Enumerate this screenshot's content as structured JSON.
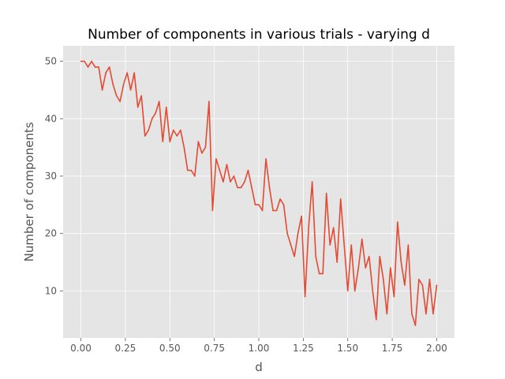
{
  "chart_data": {
    "type": "line",
    "title": "Number of components in various trials - varying d",
    "xlabel": "d",
    "ylabel": "Number of components",
    "xlim": [
      -0.1,
      2.1
    ],
    "ylim": [
      1.8,
      52.7
    ],
    "grid": true,
    "xticks": [
      0.0,
      0.25,
      0.5,
      0.75,
      1.0,
      1.25,
      1.5,
      1.75,
      2.0
    ],
    "xtick_labels": [
      "0.00",
      "0.25",
      "0.50",
      "0.75",
      "1.00",
      "1.25",
      "1.50",
      "1.75",
      "2.00"
    ],
    "yticks": [
      10,
      20,
      30,
      40,
      50
    ],
    "ytick_labels": [
      "10",
      "20",
      "30",
      "40",
      "50"
    ],
    "colors": {
      "line": "#e24a33",
      "plot_bg": "#e5e5e5",
      "grid": "#ffffff",
      "text": "#555555"
    },
    "series": [
      {
        "x": [
          0.0,
          0.02,
          0.04,
          0.06,
          0.08,
          0.1,
          0.12,
          0.14,
          0.16,
          0.18,
          0.2,
          0.22,
          0.24,
          0.26,
          0.28,
          0.3,
          0.32,
          0.34,
          0.36,
          0.38,
          0.4,
          0.42,
          0.44,
          0.46,
          0.48,
          0.5,
          0.52,
          0.54,
          0.56,
          0.58,
          0.6,
          0.62,
          0.64,
          0.66,
          0.68,
          0.7,
          0.72,
          0.74,
          0.76,
          0.78,
          0.8,
          0.82,
          0.84,
          0.86,
          0.88,
          0.9,
          0.92,
          0.94,
          0.96,
          0.98,
          1.0,
          1.02,
          1.04,
          1.06,
          1.08,
          1.1,
          1.12,
          1.14,
          1.16,
          1.18,
          1.2,
          1.22,
          1.24,
          1.26,
          1.28,
          1.3,
          1.32,
          1.34,
          1.36,
          1.38,
          1.4,
          1.42,
          1.44,
          1.46,
          1.48,
          1.5,
          1.52,
          1.54,
          1.56,
          1.58,
          1.6,
          1.62,
          1.64,
          1.66,
          1.68,
          1.7,
          1.72,
          1.74,
          1.76,
          1.78,
          1.8,
          1.82,
          1.84,
          1.86,
          1.88,
          1.9,
          1.92,
          1.94,
          1.96,
          1.98,
          2.0
        ],
        "values": [
          50,
          50,
          49,
          50,
          49,
          49,
          45,
          48,
          49,
          46,
          44,
          43,
          46,
          48,
          45,
          48,
          42,
          44,
          37,
          38,
          40,
          41,
          43,
          36,
          42,
          36,
          38,
          37,
          38,
          35,
          31,
          31,
          30,
          36,
          34,
          35,
          43,
          24,
          33,
          31,
          29,
          32,
          29,
          30,
          28,
          28,
          29,
          31,
          28,
          25,
          25,
          24,
          33,
          28,
          24,
          24,
          26,
          25,
          20,
          18,
          16,
          20,
          23,
          9,
          21,
          29,
          16,
          13,
          13,
          27,
          18,
          21,
          15,
          26,
          18,
          10,
          18,
          10,
          14,
          19,
          14,
          16,
          10,
          5,
          16,
          12,
          6,
          14,
          9,
          22,
          15,
          11,
          18,
          6,
          4,
          12,
          11,
          6,
          12,
          6,
          11
        ]
      }
    ]
  }
}
